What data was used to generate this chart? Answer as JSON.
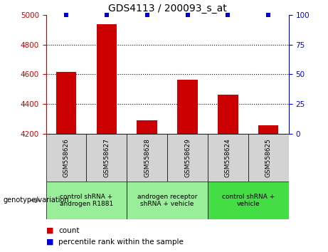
{
  "title": "GDS4113 / 200093_s_at",
  "samples": [
    "GSM558626",
    "GSM558627",
    "GSM558628",
    "GSM558629",
    "GSM558624",
    "GSM558625"
  ],
  "counts": [
    4615,
    4940,
    4290,
    4565,
    4465,
    4255
  ],
  "percentile_ranks": [
    100,
    100,
    100,
    100,
    100,
    100
  ],
  "ylim_left": [
    4200,
    5000
  ],
  "ylim_right": [
    0,
    100
  ],
  "yticks_left": [
    4200,
    4400,
    4600,
    4800,
    5000
  ],
  "yticks_right": [
    0,
    25,
    50,
    75,
    100
  ],
  "bar_color": "#cc0000",
  "percentile_color": "#0000cc",
  "grid_color": "#000000",
  "sample_bg_color": "#d3d3d3",
  "group_defs": [
    {
      "indices": [
        0,
        1
      ],
      "label": "control shRNA +\nandrogen R1881",
      "color": "#99ee99"
    },
    {
      "indices": [
        2,
        3
      ],
      "label": "androgen receptor\nshRNA + vehicle",
      "color": "#99ee99"
    },
    {
      "indices": [
        4,
        5
      ],
      "label": "control shRNA +\nvehicle",
      "color": "#44dd44"
    }
  ],
  "legend_count_label": "count",
  "legend_percentile_label": "percentile rank within the sample",
  "genotype_label": "genotype/variation",
  "tick_label_color_left": "#cc0000",
  "tick_label_color_right": "#0000cc",
  "bar_width": 0.5
}
